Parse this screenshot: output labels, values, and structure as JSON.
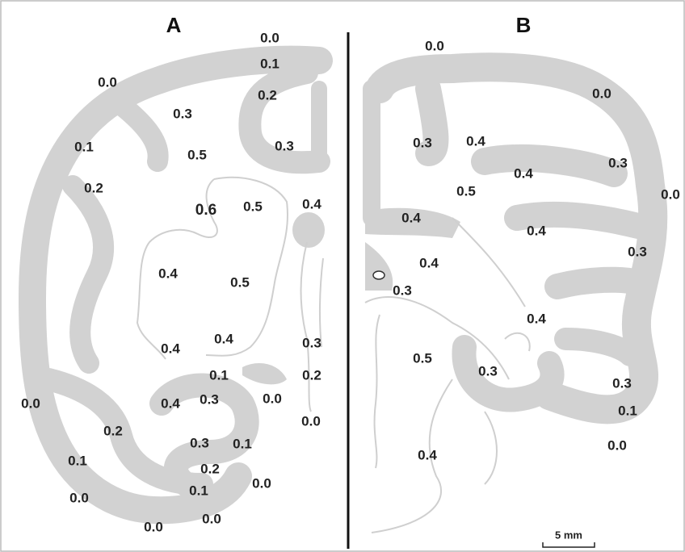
{
  "panels": [
    {
      "title": "A",
      "labels": [
        "0.0",
        "0.1",
        "0.2",
        "0.0",
        "0.3",
        "0.5",
        "0.3",
        "0.1",
        "0.2",
        "0.6",
        "0.5",
        "0.4",
        "0.4",
        "0.5",
        "0.4",
        "0.4",
        "0.3",
        "0.1",
        "0.2",
        "0.4",
        "0.3",
        "0.0",
        "0.0",
        "0.2",
        "0.3",
        "0.1",
        "0.0",
        "0.1",
        "0.2",
        "0.0",
        "0.1",
        "0.0",
        "0.0",
        "0.0"
      ]
    },
    {
      "title": "B",
      "labels": [
        "0.0",
        "0.0",
        "0.3",
        "0.4",
        "0.4",
        "0.3",
        "0.0",
        "0.5",
        "0.4",
        "0.4",
        "0.3",
        "0.4",
        "0.3",
        "0.4",
        "0.5",
        "0.3",
        "0.3",
        "0.1",
        "0.0",
        "0.4"
      ]
    }
  ],
  "scale_bar": "5 mm"
}
